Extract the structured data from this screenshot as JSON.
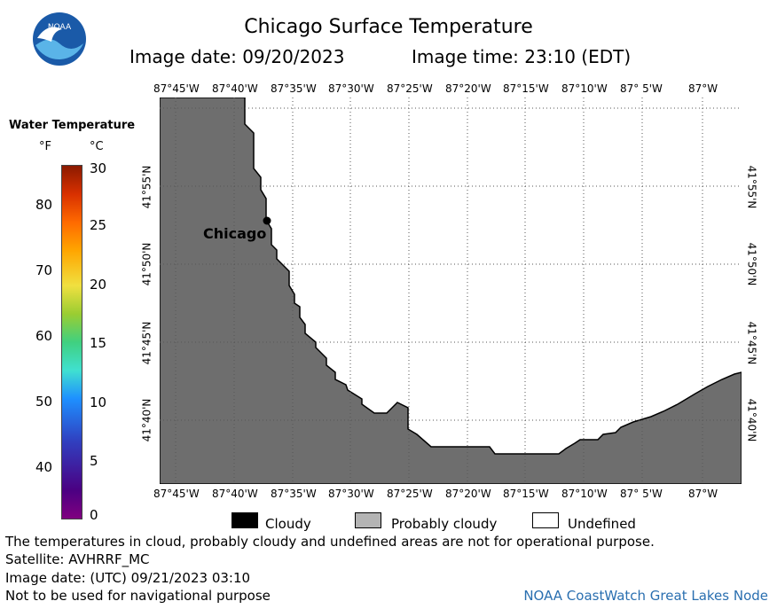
{
  "header": {
    "title": "Chicago Surface Temperature",
    "image_date": "Image date: 09/20/2023",
    "image_time": "Image time: 23:10 (EDT)"
  },
  "logo": {
    "text": "NOAA",
    "icon": "noaa-logo"
  },
  "scale": {
    "title": "Water Temperature",
    "unit_f": "°F",
    "unit_c": "°C",
    "f_ticks": [
      "80",
      "70",
      "60",
      "50",
      "40"
    ],
    "c_ticks": [
      "30",
      "25",
      "20",
      "15",
      "10",
      "5",
      "0"
    ],
    "range_c": [
      0,
      30
    ]
  },
  "map": {
    "lon_labels": [
      "87°45'W",
      "87°40'W",
      "87°35'W",
      "87°30'W",
      "87°25'W",
      "87°20'W",
      "87°15'W",
      "87°10'W",
      "87° 5'W",
      "87°W"
    ],
    "lat_labels_left": [
      "41°55'N",
      "41°50'N",
      "41°45'N",
      "41°40'N"
    ],
    "lat_labels_right": [
      "41°55'N",
      "41°50'N",
      "41°45'N",
      "41°40'N"
    ],
    "city": "Chicago",
    "land_color": "#6e6e6e",
    "water_state": "Undefined"
  },
  "legend": {
    "cloudy": "Cloudy",
    "probably_cloudy": "Probably cloudy",
    "undefined": "Undefined",
    "colors": {
      "cloudy": "#000000",
      "probably_cloudy": "#b4b4b4",
      "undefined": "#ffffff"
    }
  },
  "footer": {
    "note": "The temperatures in cloud, probably cloudy and undefined areas are not for operational purpose.",
    "satellite": "Satellite: AVHRRF_MC",
    "utc_date": "Image date: (UTC) 09/21/2023  03:10",
    "nav": "Not to be used for navigational purpose",
    "node": "NOAA CoastWatch Great Lakes Node"
  }
}
